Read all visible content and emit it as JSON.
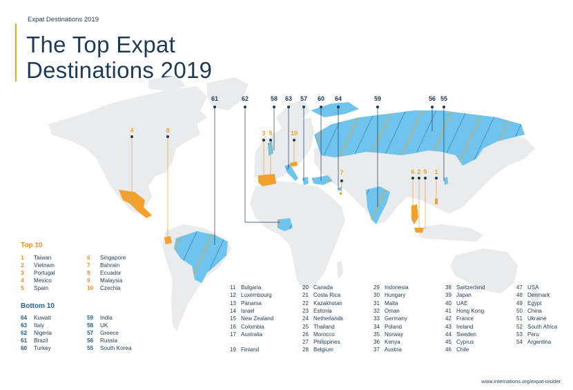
{
  "kicker": "Expat Destinations 2019",
  "title_line1": "The Top Expat",
  "title_line2": "Destinations 2019",
  "colors": {
    "top": "#f5a02a",
    "bottom": "#6ec4ec",
    "land": "#e9ebec",
    "navy": "#1e3a55",
    "bottom_label": "#1f5f96"
  },
  "top10": {
    "heading": "Top 10",
    "items": [
      {
        "rank": "1",
        "name": "Taiwan"
      },
      {
        "rank": "2",
        "name": "Vietnam"
      },
      {
        "rank": "3",
        "name": "Portugal"
      },
      {
        "rank": "4",
        "name": "Mexico"
      },
      {
        "rank": "5",
        "name": "Spain"
      },
      {
        "rank": "6",
        "name": "Singapore"
      },
      {
        "rank": "7",
        "name": "Bahrain"
      },
      {
        "rank": "8",
        "name": "Ecuador"
      },
      {
        "rank": "9",
        "name": "Malaysia"
      },
      {
        "rank": "10",
        "name": "Czechia"
      }
    ]
  },
  "bottom10": {
    "heading": "Bottom 10",
    "items": [
      {
        "rank": "64",
        "name": "Kuwait"
      },
      {
        "rank": "63",
        "name": "Italy"
      },
      {
        "rank": "62",
        "name": "Nigeria"
      },
      {
        "rank": "61",
        "name": "Brazil"
      },
      {
        "rank": "60",
        "name": "Turkey"
      },
      {
        "rank": "59",
        "name": "India"
      },
      {
        "rank": "58",
        "name": "UK"
      },
      {
        "rank": "57",
        "name": "Greece"
      },
      {
        "rank": "56",
        "name": "Russia"
      },
      {
        "rank": "55",
        "name": "South Korea"
      }
    ]
  },
  "ranking_columns": [
    [
      {
        "rank": "11",
        "name": "Bulgaria"
      },
      {
        "rank": "12",
        "name": "Luxembourg"
      },
      {
        "rank": "13",
        "name": "Panama"
      },
      {
        "rank": "14",
        "name": "Israel"
      },
      {
        "rank": "15",
        "name": "New Zealand"
      },
      {
        "rank": "16",
        "name": "Colombia"
      },
      {
        "rank": "17",
        "name": "Australia"
      },
      {
        "rank": "",
        "name": ""
      },
      {
        "rank": "19",
        "name": "Finland"
      }
    ],
    [
      {
        "rank": "20",
        "name": "Canada"
      },
      {
        "rank": "21",
        "name": "Costa Rica"
      },
      {
        "rank": "22",
        "name": "Kazakhstan"
      },
      {
        "rank": "23",
        "name": "Estonia"
      },
      {
        "rank": "24",
        "name": "Netherlands"
      },
      {
        "rank": "25",
        "name": "Thailand"
      },
      {
        "rank": "26",
        "name": "Morocco"
      },
      {
        "rank": "27",
        "name": "Philippines"
      },
      {
        "rank": "28",
        "name": "Belgium"
      }
    ],
    [
      {
        "rank": "29",
        "name": "Indonesia"
      },
      {
        "rank": "30",
        "name": "Hungary"
      },
      {
        "rank": "31",
        "name": "Malta"
      },
      {
        "rank": "32",
        "name": "Oman"
      },
      {
        "rank": "33",
        "name": "Germany"
      },
      {
        "rank": "34",
        "name": "Poland"
      },
      {
        "rank": "35",
        "name": "Norway"
      },
      {
        "rank": "36",
        "name": "Kenya"
      },
      {
        "rank": "37",
        "name": "Austria"
      }
    ],
    [
      {
        "rank": "38",
        "name": "Switzerland"
      },
      {
        "rank": "39",
        "name": "Japan"
      },
      {
        "rank": "40",
        "name": "UAE"
      },
      {
        "rank": "41",
        "name": "Hong Kong"
      },
      {
        "rank": "42",
        "name": "France"
      },
      {
        "rank": "43",
        "name": "Ireland"
      },
      {
        "rank": "44",
        "name": "Sweden"
      },
      {
        "rank": "45",
        "name": "Cyprus"
      },
      {
        "rank": "46",
        "name": "Chile"
      }
    ],
    [
      {
        "rank": "47",
        "name": "USA"
      },
      {
        "rank": "48",
        "name": "Denmark"
      },
      {
        "rank": "49",
        "name": "Egypt"
      },
      {
        "rank": "50",
        "name": "China"
      },
      {
        "rank": "51",
        "name": "Ukraine"
      },
      {
        "rank": "52",
        "name": "South Africa"
      },
      {
        "rank": "53",
        "name": "Peru"
      },
      {
        "rank": "54",
        "name": "Argentina"
      }
    ]
  ],
  "pins": {
    "p4": "4",
    "p8": "8",
    "p61": "61",
    "p62": "62",
    "p58": "58",
    "p63": "63",
    "p57": "57",
    "p60": "60",
    "p64": "64",
    "p59": "59",
    "p56": "56",
    "p55": "55",
    "p3": "3",
    "p5": "5",
    "p10": "10",
    "p7": "7",
    "p6": "6",
    "p2": "2",
    "p9": "9",
    "p1": "1"
  },
  "footer": "www.internations.org/expat-insider"
}
